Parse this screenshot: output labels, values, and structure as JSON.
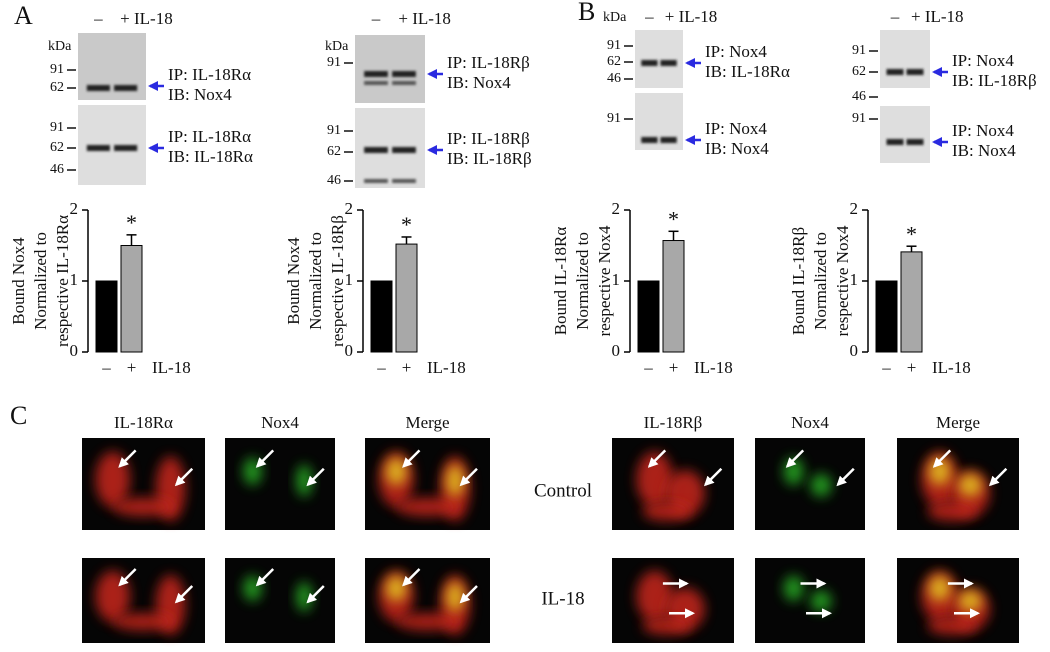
{
  "panels": [
    "A",
    "B",
    "C"
  ],
  "blots": [
    {
      "kda": "kDa",
      "lanes": [
        "–",
        "+ IL-18"
      ],
      "sections": [
        {
          "markers": [
            91,
            62
          ],
          "ip": "IP: IL-18Rα",
          "ib": "IB: Nox4"
        },
        {
          "markers": [
            91,
            62,
            46
          ],
          "ip": "IP: IL-18Rα",
          "ib": "IB: IL-18Rα"
        }
      ]
    },
    {
      "kda": "kDa",
      "lanes": [
        "–",
        "+ IL-18"
      ],
      "sections": [
        {
          "markers": [
            91
          ],
          "ip": "IP: IL-18Rβ",
          "ib": "IB: Nox4"
        },
        {
          "markers": [
            91,
            62,
            46
          ],
          "ip": "IP: IL-18Rβ",
          "ib": "IB: IL-18Rβ"
        }
      ]
    },
    {
      "kda": "kDa",
      "lanes": [
        "–",
        "+ IL-18"
      ],
      "sections": [
        {
          "markers": [
            91,
            62,
            46
          ],
          "ip": "IP: Nox4",
          "ib": "IB: IL-18Rα"
        },
        {
          "markers": [
            91
          ],
          "ip": "IP: Nox4",
          "ib": "IB: Nox4"
        }
      ]
    },
    {
      "lanes": [
        "–",
        "+ IL-18"
      ],
      "sections": [
        {
          "markers": [
            91,
            62,
            46
          ],
          "ip": "IP: Nox4",
          "ib": "IB: IL-18Rβ"
        },
        {
          "markers": [
            91
          ],
          "ip": "IP: Nox4",
          "ib": "IB: Nox4"
        }
      ]
    }
  ],
  "chart_data": [
    {
      "type": "bar",
      "ylabel": [
        "Bound Nox4",
        "Normalized to",
        "respective IL-18Rα"
      ],
      "categories": [
        "–",
        "+"
      ],
      "xlabel": "IL-18",
      "values": [
        1,
        1.5
      ],
      "errors": [
        null,
        0.15
      ],
      "significance": "*",
      "colors": [
        "#000000",
        "#a8a8a8"
      ],
      "ylim": [
        0,
        2
      ],
      "yticks": [
        0,
        1,
        2
      ]
    },
    {
      "type": "bar",
      "ylabel": [
        "Bound Nox4",
        "Normalized to",
        "respective IL-18Rβ"
      ],
      "categories": [
        "–",
        "+"
      ],
      "xlabel": "IL-18",
      "values": [
        1,
        1.52
      ],
      "errors": [
        null,
        0.1
      ],
      "significance": "*",
      "colors": [
        "#000000",
        "#a8a8a8"
      ],
      "ylim": [
        0,
        2
      ],
      "yticks": [
        0,
        1,
        2
      ]
    },
    {
      "type": "bar",
      "ylabel": [
        "Bound IL-18Rα",
        "Normalized to",
        "respective Nox4"
      ],
      "categories": [
        "–",
        "+"
      ],
      "xlabel": "IL-18",
      "values": [
        1,
        1.57
      ],
      "errors": [
        null,
        0.13
      ],
      "significance": "*",
      "colors": [
        "#000000",
        "#a8a8a8"
      ],
      "ylim": [
        0,
        2
      ],
      "yticks": [
        0,
        1,
        2
      ]
    },
    {
      "type": "bar",
      "ylabel": [
        "Bound IL-18Rβ",
        "Normalized to",
        "respective Nox4"
      ],
      "categories": [
        "–",
        "+"
      ],
      "xlabel": "IL-18",
      "values": [
        1,
        1.41
      ],
      "errors": [
        null,
        0.08
      ],
      "significance": "*",
      "colors": [
        "#000000",
        "#a8a8a8"
      ],
      "ylim": [
        0,
        2
      ],
      "yticks": [
        0,
        1,
        2
      ]
    }
  ],
  "microscopy": {
    "groups": [
      {
        "columns": [
          "IL-18Rα",
          "Nox4",
          "Merge"
        ]
      },
      {
        "columns": [
          "IL-18Rβ",
          "Nox4",
          "Merge"
        ]
      }
    ],
    "rows": [
      "Control",
      "IL-18"
    ]
  }
}
